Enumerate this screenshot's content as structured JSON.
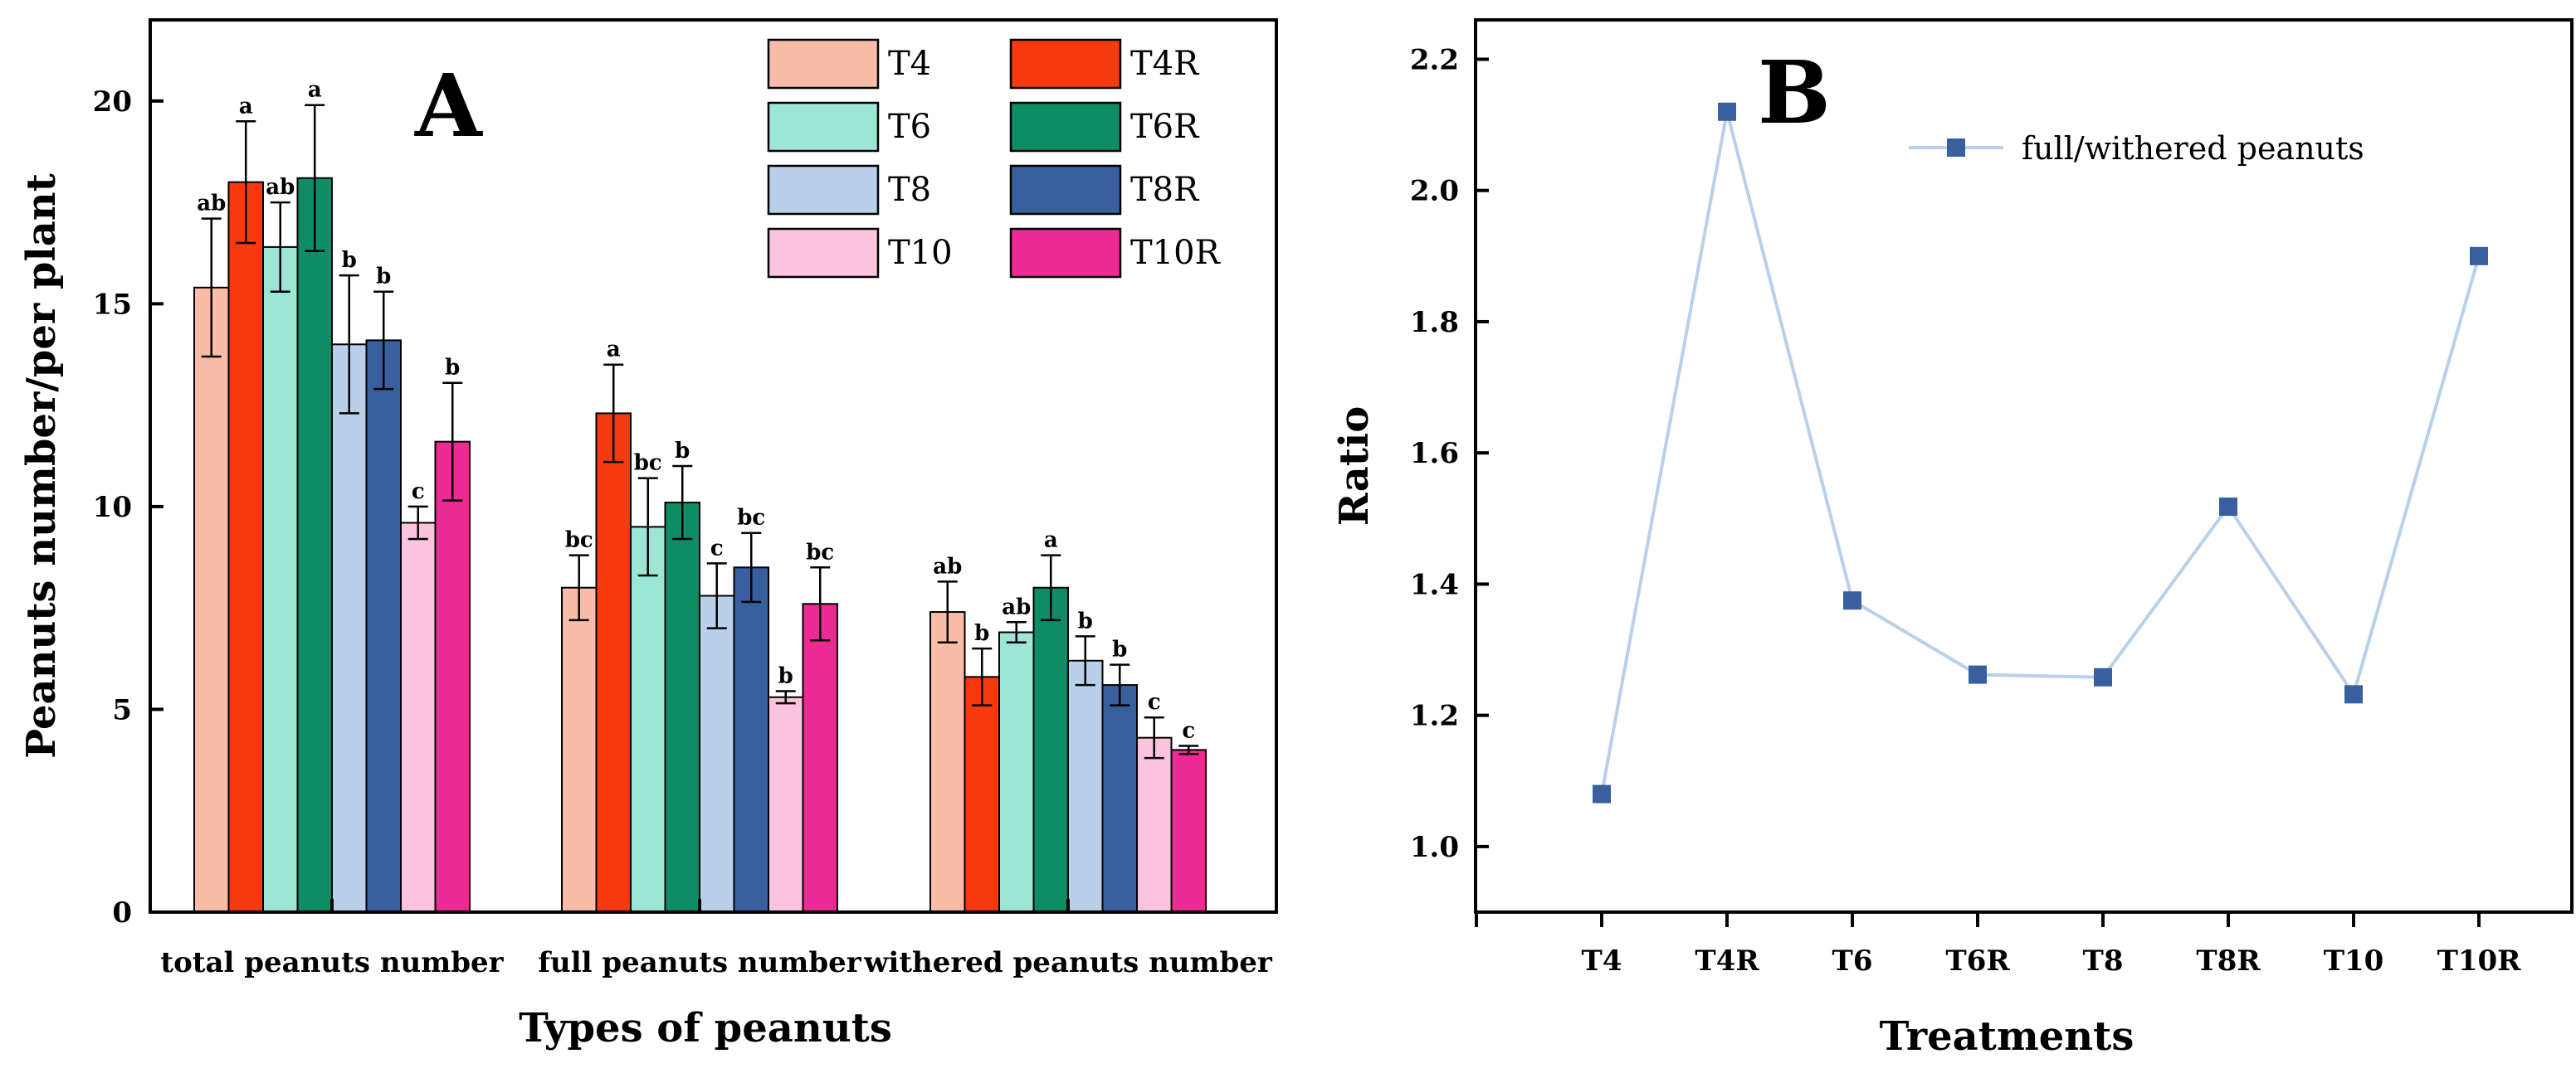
{
  "chart_data": [
    {
      "type": "bar",
      "panel_label": "A",
      "xlabel": "Types of peanuts",
      "ylabel": "Peanuts number/per plant",
      "ylim": [
        0,
        22
      ],
      "yticks": [
        0,
        5,
        10,
        15,
        20
      ],
      "categories": [
        "total peanuts number",
        "full peanuts number",
        "withered peanuts number"
      ],
      "series": [
        {
          "name": "T4",
          "color": "#F8BCA8",
          "values": [
            15.4,
            8.0,
            7.4
          ],
          "errors": [
            1.7,
            0.8,
            0.75
          ],
          "letters": [
            "ab",
            "bc",
            "ab"
          ]
        },
        {
          "name": "T4R",
          "color": "#F53B0E",
          "values": [
            18.0,
            12.3,
            5.8
          ],
          "errors": [
            1.5,
            1.2,
            0.7
          ],
          "letters": [
            "a",
            "a",
            "b"
          ]
        },
        {
          "name": "T6",
          "color": "#9DE6D6",
          "values": [
            16.4,
            9.5,
            6.9
          ],
          "errors": [
            1.1,
            1.2,
            0.25
          ],
          "letters": [
            "ab",
            "bc",
            "ab"
          ]
        },
        {
          "name": "T6R",
          "color": "#0E8C66",
          "values": [
            18.1,
            10.1,
            8.0
          ],
          "errors": [
            1.8,
            0.9,
            0.8
          ],
          "letters": [
            "a",
            "b",
            "a"
          ]
        },
        {
          "name": "T8",
          "color": "#B8D0E9",
          "values": [
            14.0,
            7.8,
            6.2
          ],
          "errors": [
            1.7,
            0.8,
            0.6
          ],
          "letters": [
            "b",
            "c",
            "b"
          ]
        },
        {
          "name": "T8R",
          "color": "#38609E",
          "values": [
            14.1,
            8.5,
            5.6
          ],
          "errors": [
            1.2,
            0.85,
            0.5
          ],
          "letters": [
            "b",
            "bc",
            "b"
          ]
        },
        {
          "name": "T10",
          "color": "#FBC3DD",
          "values": [
            9.6,
            5.3,
            4.3
          ],
          "errors": [
            0.4,
            0.15,
            0.5
          ],
          "letters": [
            "c",
            "b",
            "c"
          ]
        },
        {
          "name": "T10R",
          "color": "#EE2A94",
          "values": [
            11.6,
            7.6,
            4.0
          ],
          "errors": [
            1.45,
            0.9,
            0.1
          ],
          "letters": [
            "b",
            "bc",
            "c"
          ]
        }
      ]
    },
    {
      "type": "line",
      "panel_label": "B",
      "xlabel": "Treatments",
      "ylabel": "Ratio",
      "ylim": [
        0.9,
        2.26
      ],
      "yticks": [
        "1.0",
        "1.2",
        "1.4",
        "1.6",
        "1.8",
        "2.0",
        "2.2"
      ],
      "categories": [
        "T4",
        "T4R",
        "T6",
        "T6R",
        "T8",
        "T8R",
        "T10",
        "T10R"
      ],
      "series": [
        {
          "name": "full/withered peanuts",
          "line_color": "#B8D0E9",
          "marker_color": "#38609E",
          "values": [
            1.08,
            2.12,
            1.375,
            1.262,
            1.258,
            1.518,
            1.232,
            1.9
          ]
        }
      ]
    }
  ]
}
